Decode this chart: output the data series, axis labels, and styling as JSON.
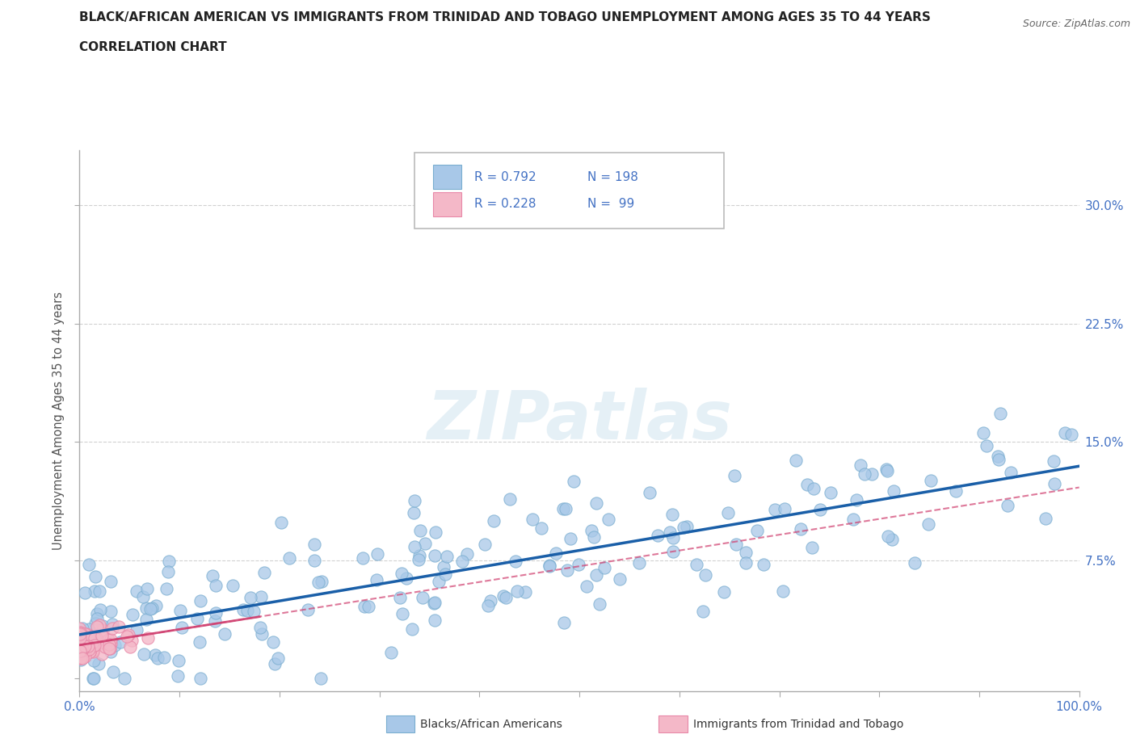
{
  "title_line1": "BLACK/AFRICAN AMERICAN VS IMMIGRANTS FROM TRINIDAD AND TOBAGO UNEMPLOYMENT AMONG AGES 35 TO 44 YEARS",
  "title_line2": "CORRELATION CHART",
  "source_text": "Source: ZipAtlas.com",
  "ylabel": "Unemployment Among Ages 35 to 44 years",
  "x_min": 0.0,
  "x_max": 1.0,
  "y_min": -0.008,
  "y_max": 0.335,
  "yticks": [
    0.0,
    0.075,
    0.15,
    0.225,
    0.3
  ],
  "ytick_labels": [
    "",
    "7.5%",
    "15.0%",
    "22.5%",
    "30.0%"
  ],
  "xtick_positions": [
    0.0,
    0.1,
    0.2,
    0.3,
    0.4,
    0.5,
    0.6,
    0.7,
    0.8,
    0.9,
    1.0
  ],
  "blue_R": 0.792,
  "blue_N": 198,
  "pink_R": 0.228,
  "pink_N": 99,
  "blue_color": "#a8c8e8",
  "blue_edge_color": "#7aaed0",
  "pink_color": "#f4b8c8",
  "pink_edge_color": "#e888a8",
  "blue_line_color": "#1a5fa8",
  "pink_line_color": "#d04070",
  "legend_blue_label": "Blacks/African Americans",
  "legend_pink_label": "Immigrants from Trinidad and Tobago",
  "watermark": "ZIPatlas",
  "bg": "#ffffff",
  "grid_color": "#cccccc",
  "title_color": "#222222",
  "label_color": "#4472c4",
  "blue_seed": 12,
  "pink_seed": 5
}
